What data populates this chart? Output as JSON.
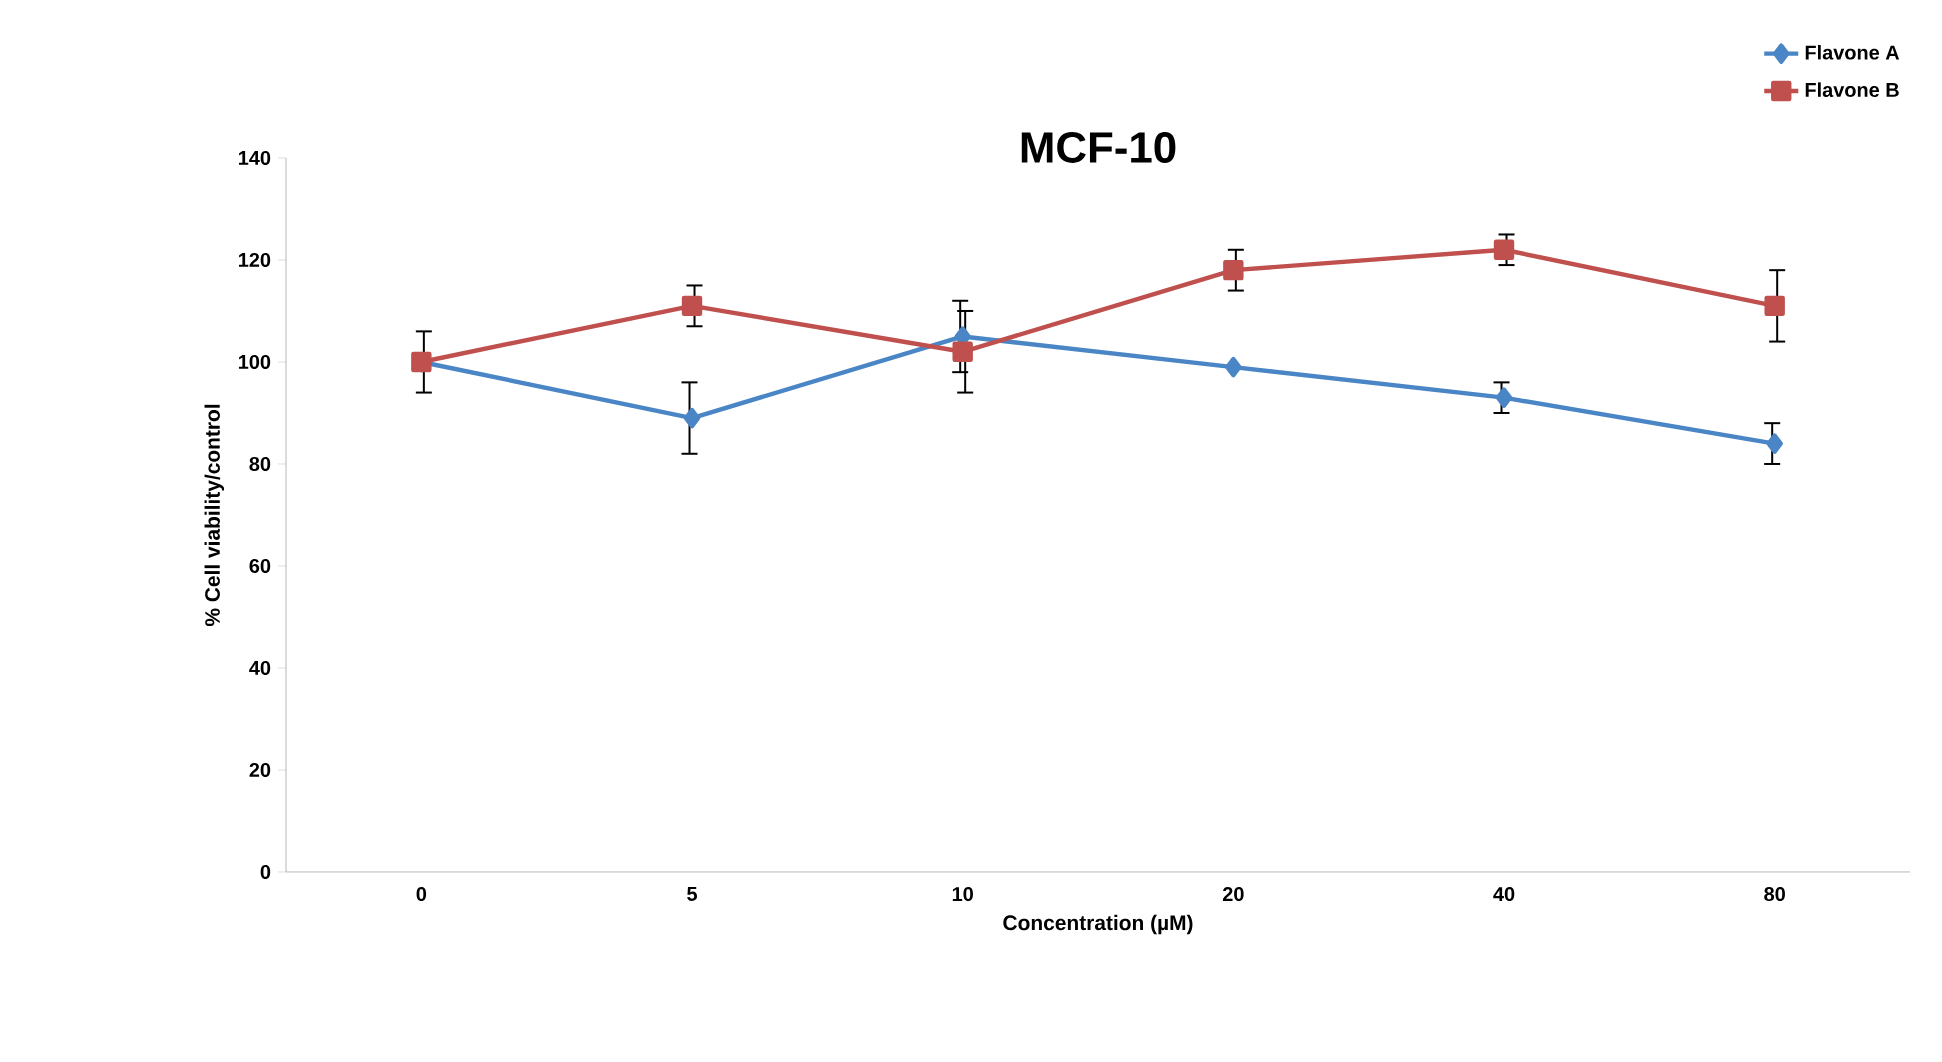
{
  "chart_data": {
    "type": "line",
    "title": "MCF-10",
    "xlabel": "Concentration (µM)",
    "ylabel": "% Cell viability/control",
    "categories": [
      "0",
      "5",
      "10",
      "20",
      "40",
      "80"
    ],
    "ylim": [
      0,
      140
    ],
    "yticks": [
      0,
      20,
      40,
      60,
      80,
      100,
      120,
      140
    ],
    "grid": false,
    "legend": "top right",
    "series": [
      {
        "name": "Flavone A",
        "color": "#4a86c5",
        "marker": "diamond",
        "values": [
          100,
          89,
          105,
          99,
          93,
          84
        ],
        "errors": [
          null,
          7,
          7,
          null,
          3,
          4
        ]
      },
      {
        "name": "Flavone B",
        "color": "#c0504d",
        "marker": "square",
        "values": [
          100,
          111,
          102,
          118,
          122,
          111
        ],
        "errors": [
          6,
          4,
          8,
          4,
          3,
          7
        ]
      }
    ]
  }
}
